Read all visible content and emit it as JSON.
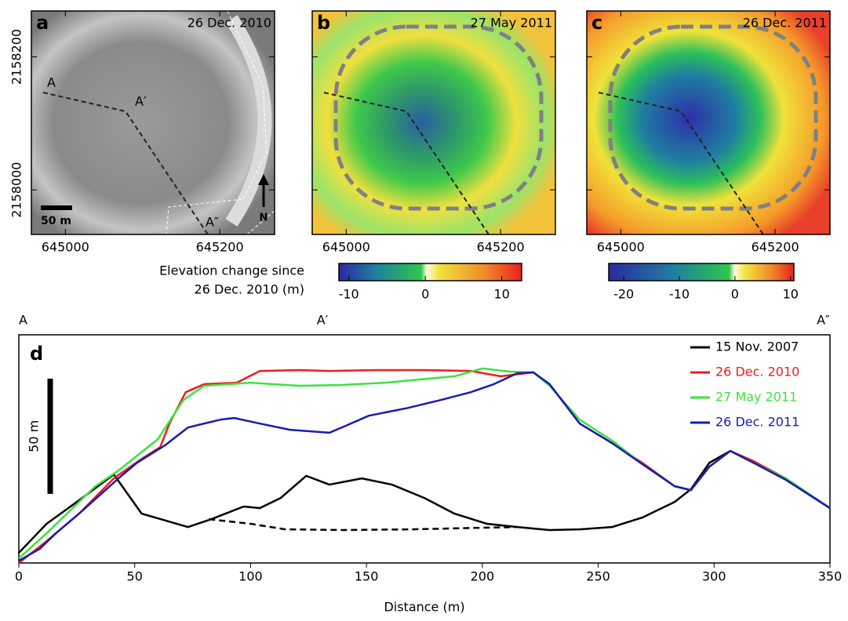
{
  "maps": {
    "panels": [
      {
        "letter": "a",
        "date": "26 Dec. 2010"
      },
      {
        "letter": "b",
        "date": "27 May 2011"
      },
      {
        "letter": "c",
        "date": "26 Dec. 2011"
      }
    ],
    "xlim": [
      644956,
      645271
    ],
    "ylim": [
      2157933,
      2158269
    ],
    "xticks": [
      645000,
      645200
    ],
    "yticks": [
      2158000,
      2158200
    ],
    "profile_labels": [
      "A",
      "A′",
      "A″"
    ],
    "scale_label": "50 m",
    "north": "N",
    "colorbar_title": [
      "Elevation change since",
      "26 Dec. 2010 (m)"
    ],
    "colorbars": [
      {
        "lim": [
          -11.3,
          12.6
        ],
        "ticks": [
          -10,
          0,
          10
        ]
      },
      {
        "lim": [
          -22.7,
          10.6
        ],
        "ticks": [
          -20,
          -10,
          0,
          10
        ]
      }
    ]
  },
  "chart_data": {
    "type": "line",
    "panel_label": "d",
    "xlabel": "Distance (m)",
    "xlim": [
      0,
      350
    ],
    "xticks": [
      0,
      50,
      100,
      150,
      200,
      250,
      300,
      350
    ],
    "ylim": [
      0,
      99
    ],
    "section_labels": {
      "labels": [
        "A",
        "A′",
        "A″"
      ],
      "x": [
        0,
        131,
        350
      ]
    },
    "scale_bar": {
      "length": 50,
      "label": "50 m"
    },
    "series": [
      {
        "name": "15 Nov. 2007",
        "color": "#000000",
        "x": [
          0,
          12,
          26,
          41,
          53,
          73,
          83,
          97,
          104,
          113,
          124,
          134,
          148,
          161,
          175,
          188,
          202,
          215,
          229,
          242,
          256,
          269,
          283,
          290,
          298,
          307,
          317,
          331,
          350
        ],
        "values": [
          4.4,
          17,
          27.2,
          38.4,
          21.4,
          15.6,
          19,
          24.5,
          23.8,
          28.2,
          37.8,
          34,
          36.7,
          34,
          28.2,
          21.4,
          17,
          15.6,
          14.3,
          14.6,
          15.6,
          19.7,
          26.5,
          32,
          43.5,
          48.6,
          43.5,
          36.1,
          23.8
        ]
      },
      {
        "name": "26 Dec. 2010",
        "color": "#ee1c1c",
        "x": [
          0,
          12,
          26,
          41,
          53,
          61,
          65,
          72,
          80,
          94,
          104,
          121,
          134,
          154,
          175,
          195,
          208,
          222,
          229,
          242,
          256,
          269,
          283,
          290,
          298,
          307,
          317,
          331,
          350
        ],
        "values": [
          0,
          9.5,
          21.4,
          36.7,
          45.2,
          50.3,
          60.5,
          74.1,
          77.6,
          78.2,
          83.3,
          83.7,
          83.3,
          83.7,
          83.7,
          83.3,
          81,
          82.7,
          77.6,
          60.5,
          52,
          43.5,
          33.3,
          31.6,
          41.8,
          48.6,
          44.2,
          36.7,
          23.8
        ]
      },
      {
        "name": "27 May 2011",
        "color": "#3ee23e",
        "x": [
          0,
          12,
          26,
          33,
          43,
          60,
          71,
          80,
          100,
          121,
          138,
          158,
          188,
          200,
          212,
          222,
          229,
          242,
          256,
          269,
          283,
          290,
          298,
          307,
          317,
          331,
          350
        ],
        "values": [
          2,
          12.9,
          26.5,
          33.3,
          40.1,
          53.7,
          70.7,
          76.9,
          78.2,
          76.9,
          77.2,
          78.2,
          81,
          84.4,
          83,
          82.7,
          76.9,
          62.2,
          53.1,
          42.9,
          33.3,
          31.6,
          41.8,
          48.6,
          43.5,
          36.7,
          23.8
        ]
      },
      {
        "name": "26 Dec. 2011",
        "color": "#1a1ab4",
        "x": [
          0,
          9,
          16,
          26,
          43,
          51,
          63,
          73,
          87,
          93,
          104,
          117,
          134,
          141,
          151,
          168,
          182,
          195,
          205,
          215,
          222,
          229,
          242,
          256,
          269,
          283,
          290,
          298,
          307,
          317,
          331,
          350
        ],
        "values": [
          1,
          6.1,
          12.9,
          21.4,
          36.7,
          43.5,
          51,
          58.8,
          62.2,
          62.9,
          60.5,
          57.8,
          56.5,
          59.5,
          63.9,
          67.3,
          70.7,
          74.1,
          77.6,
          82.3,
          82.7,
          77.6,
          60.5,
          52,
          42.9,
          33.3,
          31.6,
          41.8,
          48.6,
          43.5,
          36.1,
          23.8
        ]
      },
      {
        "color": "#000000",
        "style": "dashed",
        "x": [
          82,
          100,
          115,
          140,
          170,
          200,
          215
        ],
        "values": [
          19,
          17,
          14.6,
          14.3,
          14.6,
          15.3,
          15.6
        ]
      }
    ]
  }
}
